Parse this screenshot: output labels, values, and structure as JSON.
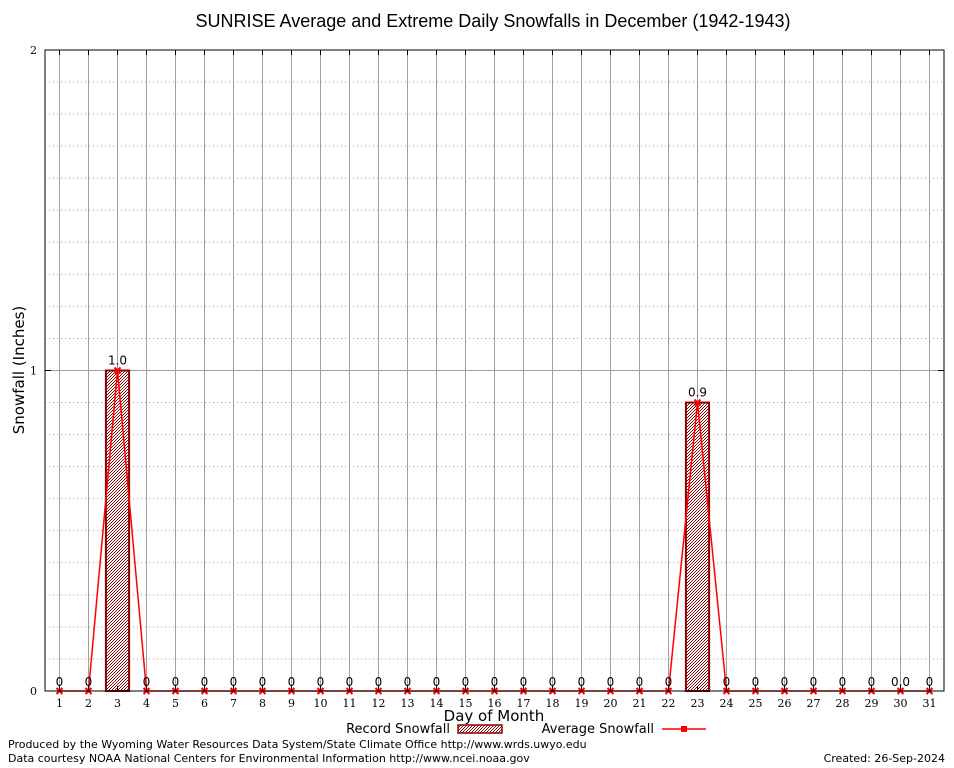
{
  "chart_data": {
    "type": "bar",
    "title": "SUNRISE Average and Extreme Daily Snowfalls in December (1942-1943)",
    "xlabel": "Day of Month",
    "ylabel": "Snowfall (Inches)",
    "ylim": [
      0,
      2
    ],
    "yticks": [
      0,
      1,
      2
    ],
    "grid": true,
    "categories": [
      "1",
      "2",
      "3",
      "4",
      "5",
      "6",
      "7",
      "8",
      "9",
      "10",
      "11",
      "12",
      "13",
      "14",
      "15",
      "16",
      "17",
      "18",
      "19",
      "20",
      "21",
      "22",
      "23",
      "24",
      "25",
      "26",
      "27",
      "28",
      "29",
      "30",
      "31"
    ],
    "series": [
      {
        "name": "Record Snowfall",
        "kind": "bar",
        "values": [
          0,
          0,
          1.0,
          0,
          0,
          0,
          0,
          0,
          0,
          0,
          0,
          0,
          0,
          0,
          0,
          0,
          0,
          0,
          0,
          0,
          0,
          0,
          0.9,
          0,
          0,
          0,
          0,
          0,
          0,
          0,
          0
        ]
      },
      {
        "name": "Average Snowfall",
        "kind": "line",
        "values": [
          0,
          0,
          1.0,
          0,
          0,
          0,
          0,
          0,
          0,
          0,
          0,
          0,
          0,
          0,
          0,
          0,
          0,
          0,
          0,
          0,
          0,
          0,
          0.9,
          0,
          0,
          0,
          0,
          0,
          0,
          0,
          0
        ]
      }
    ],
    "data_labels": [
      "0",
      "0",
      "1.0",
      "0",
      "0",
      "0",
      "0",
      "0",
      "0",
      "0",
      "0",
      "0",
      "0",
      "0",
      "0",
      "0",
      "0",
      "0",
      "0",
      "0",
      "0",
      "0",
      "0.9",
      "0",
      "0",
      "0",
      "0",
      "0",
      "0",
      "0.0",
      "0"
    ],
    "legend": [
      "Record Snowfall",
      "Average Snowfall"
    ],
    "legend_position": "bottom-center"
  },
  "footer": {
    "produced_by": "Produced by the Wyoming Water Resources Data System/State Climate Office http://www.wrds.uwyo.edu",
    "courtesy": "Data courtesy NOAA National Centers for Environmental Information http://www.ncei.noaa.gov",
    "created": "Created:  26-Sep-2024"
  },
  "colors": {
    "bar_fill": "#c8a0a0",
    "bar_stroke": "#8b0000",
    "line": "#ff0000",
    "grid": "#a0a0a0"
  }
}
